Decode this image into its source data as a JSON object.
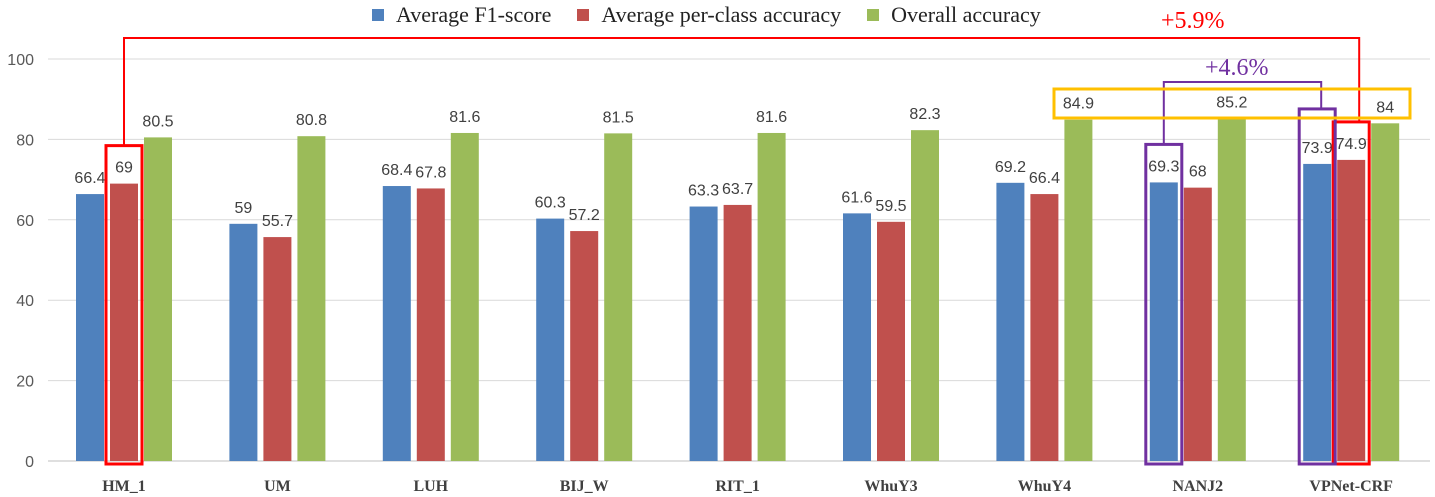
{
  "chart_data": {
    "type": "bar",
    "title": "",
    "xlabel": "",
    "ylabel": "",
    "ylim": [
      0,
      100
    ],
    "yticks": [
      0,
      20,
      40,
      60,
      80,
      100
    ],
    "grid": true,
    "legend_position": "top",
    "categories": [
      "HM_1",
      "UM",
      "LUH",
      "BIJ_W",
      "RIT_1",
      "WhuY3",
      "WhuY4",
      "NANJ2",
      "VPNet-CRF"
    ],
    "series": [
      {
        "name": "Average F1-score",
        "color": "#4f81bd",
        "values": [
          66.4,
          59,
          68.4,
          60.3,
          63.3,
          61.6,
          69.2,
          69.3,
          73.9
        ]
      },
      {
        "name": "Average per-class accuracy",
        "color": "#c0504d",
        "values": [
          69,
          55.7,
          67.8,
          57.2,
          63.7,
          59.5,
          66.4,
          68,
          74.9
        ]
      },
      {
        "name": "Overall accuracy",
        "color": "#9bbb59",
        "values": [
          80.5,
          80.8,
          81.6,
          81.5,
          81.6,
          82.3,
          84.9,
          85.2,
          84
        ]
      }
    ],
    "annotations": [
      {
        "text": "+5.9%",
        "color": "#ff0000"
      },
      {
        "text": "+4.6%",
        "color": "#7030a0"
      }
    ]
  }
}
